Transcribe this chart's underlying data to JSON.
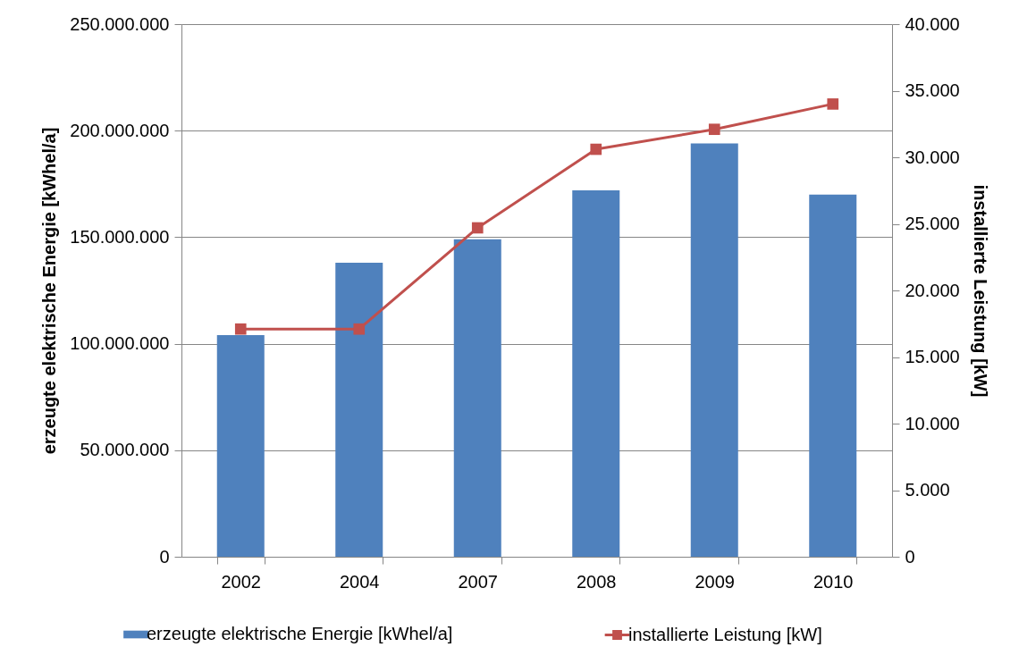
{
  "chart_data": {
    "type": "bar",
    "categories": [
      "2002",
      "2004",
      "2007",
      "2008",
      "2009",
      "2010"
    ],
    "ylabel": "erzeugte elektrische Energie [kWhel/a]",
    "y2label": "installierte Leistung [kW]",
    "series": [
      {
        "name": "erzeugte elektrische Energie [kWhel/a]",
        "color": "#4f81bd",
        "values": [
          104000000,
          138000000,
          149000000,
          172000000,
          194000000,
          170000000
        ]
      },
      {
        "name": "installierte Leistung [kW]",
        "type": "line",
        "axis": "y2",
        "color": "#c0504d",
        "marker": "square",
        "values": [
          17100,
          17100,
          24700,
          30600,
          32100,
          34000
        ]
      }
    ],
    "ylim": [
      0,
      250000000
    ],
    "yticks": [
      {
        "value": 0,
        "label": "0"
      },
      {
        "value": 50000000,
        "label": "50.000.000"
      },
      {
        "value": 100000000,
        "label": "100.000.000"
      },
      {
        "value": 150000000,
        "label": "150.000.000"
      },
      {
        "value": 200000000,
        "label": "200.000.000"
      },
      {
        "value": 250000000,
        "label": "250.000.000"
      }
    ],
    "y2lim": [
      0,
      40000
    ],
    "y2ticks": [
      {
        "value": 0,
        "label": "0"
      },
      {
        "value": 5000,
        "label": "5.000"
      },
      {
        "value": 10000,
        "label": "10.000"
      },
      {
        "value": 15000,
        "label": "15.000"
      },
      {
        "value": 20000,
        "label": "20.000"
      },
      {
        "value": 25000,
        "label": "25.000"
      },
      {
        "value": 30000,
        "label": "30.000"
      },
      {
        "value": 35000,
        "label": "35.000"
      },
      {
        "value": 40000,
        "label": "40.000"
      }
    ],
    "grid": "y",
    "legend": "bottom"
  }
}
